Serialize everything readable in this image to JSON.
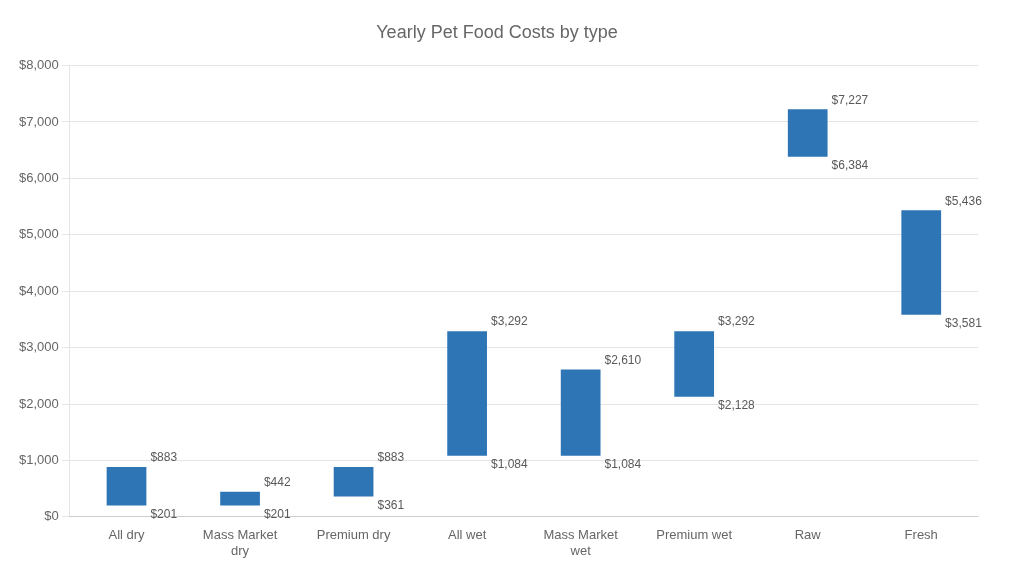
{
  "chart_data": {
    "type": "bar",
    "title": "Yearly Pet Food Costs by type",
    "categories": [
      "All dry",
      "Mass Market\ndry",
      "Premium dry",
      "All wet",
      "Mass Market\nwet",
      "Premium wet",
      "Raw",
      "Fresh"
    ],
    "values": [
      [
        201,
        883
      ],
      [
        201,
        442
      ],
      [
        361,
        883
      ],
      [
        1084,
        3292
      ],
      [
        1084,
        2610
      ],
      [
        2128,
        3292
      ],
      [
        6384,
        7227
      ],
      [
        3581,
        5436
      ]
    ],
    "value_labels": [
      [
        "$201",
        "$883"
      ],
      [
        "$201",
        "$442"
      ],
      [
        "$361",
        "$883"
      ],
      [
        "$1,084",
        "$3,292"
      ],
      [
        "$1,084",
        "$2,610"
      ],
      [
        "$2,128",
        "$3,292"
      ],
      [
        "$6,384",
        "$7,227"
      ],
      [
        "$3,581",
        "$5,436"
      ]
    ],
    "data_labels": true,
    "color": "#2E75B6",
    "ylim": [
      0,
      8000
    ],
    "yticks": [
      {
        "value": 0,
        "label": "$0"
      },
      {
        "value": 1000,
        "label": "$1,000"
      },
      {
        "value": 2000,
        "label": "$2,000"
      },
      {
        "value": 3000,
        "label": "$3,000"
      },
      {
        "value": 4000,
        "label": "$4,000"
      },
      {
        "value": 5000,
        "label": "$5,000"
      },
      {
        "value": 6000,
        "label": "$6,000"
      },
      {
        "value": 7000,
        "label": "$7,000"
      },
      {
        "value": 8000,
        "label": "$8,000"
      }
    ],
    "grid": true
  }
}
